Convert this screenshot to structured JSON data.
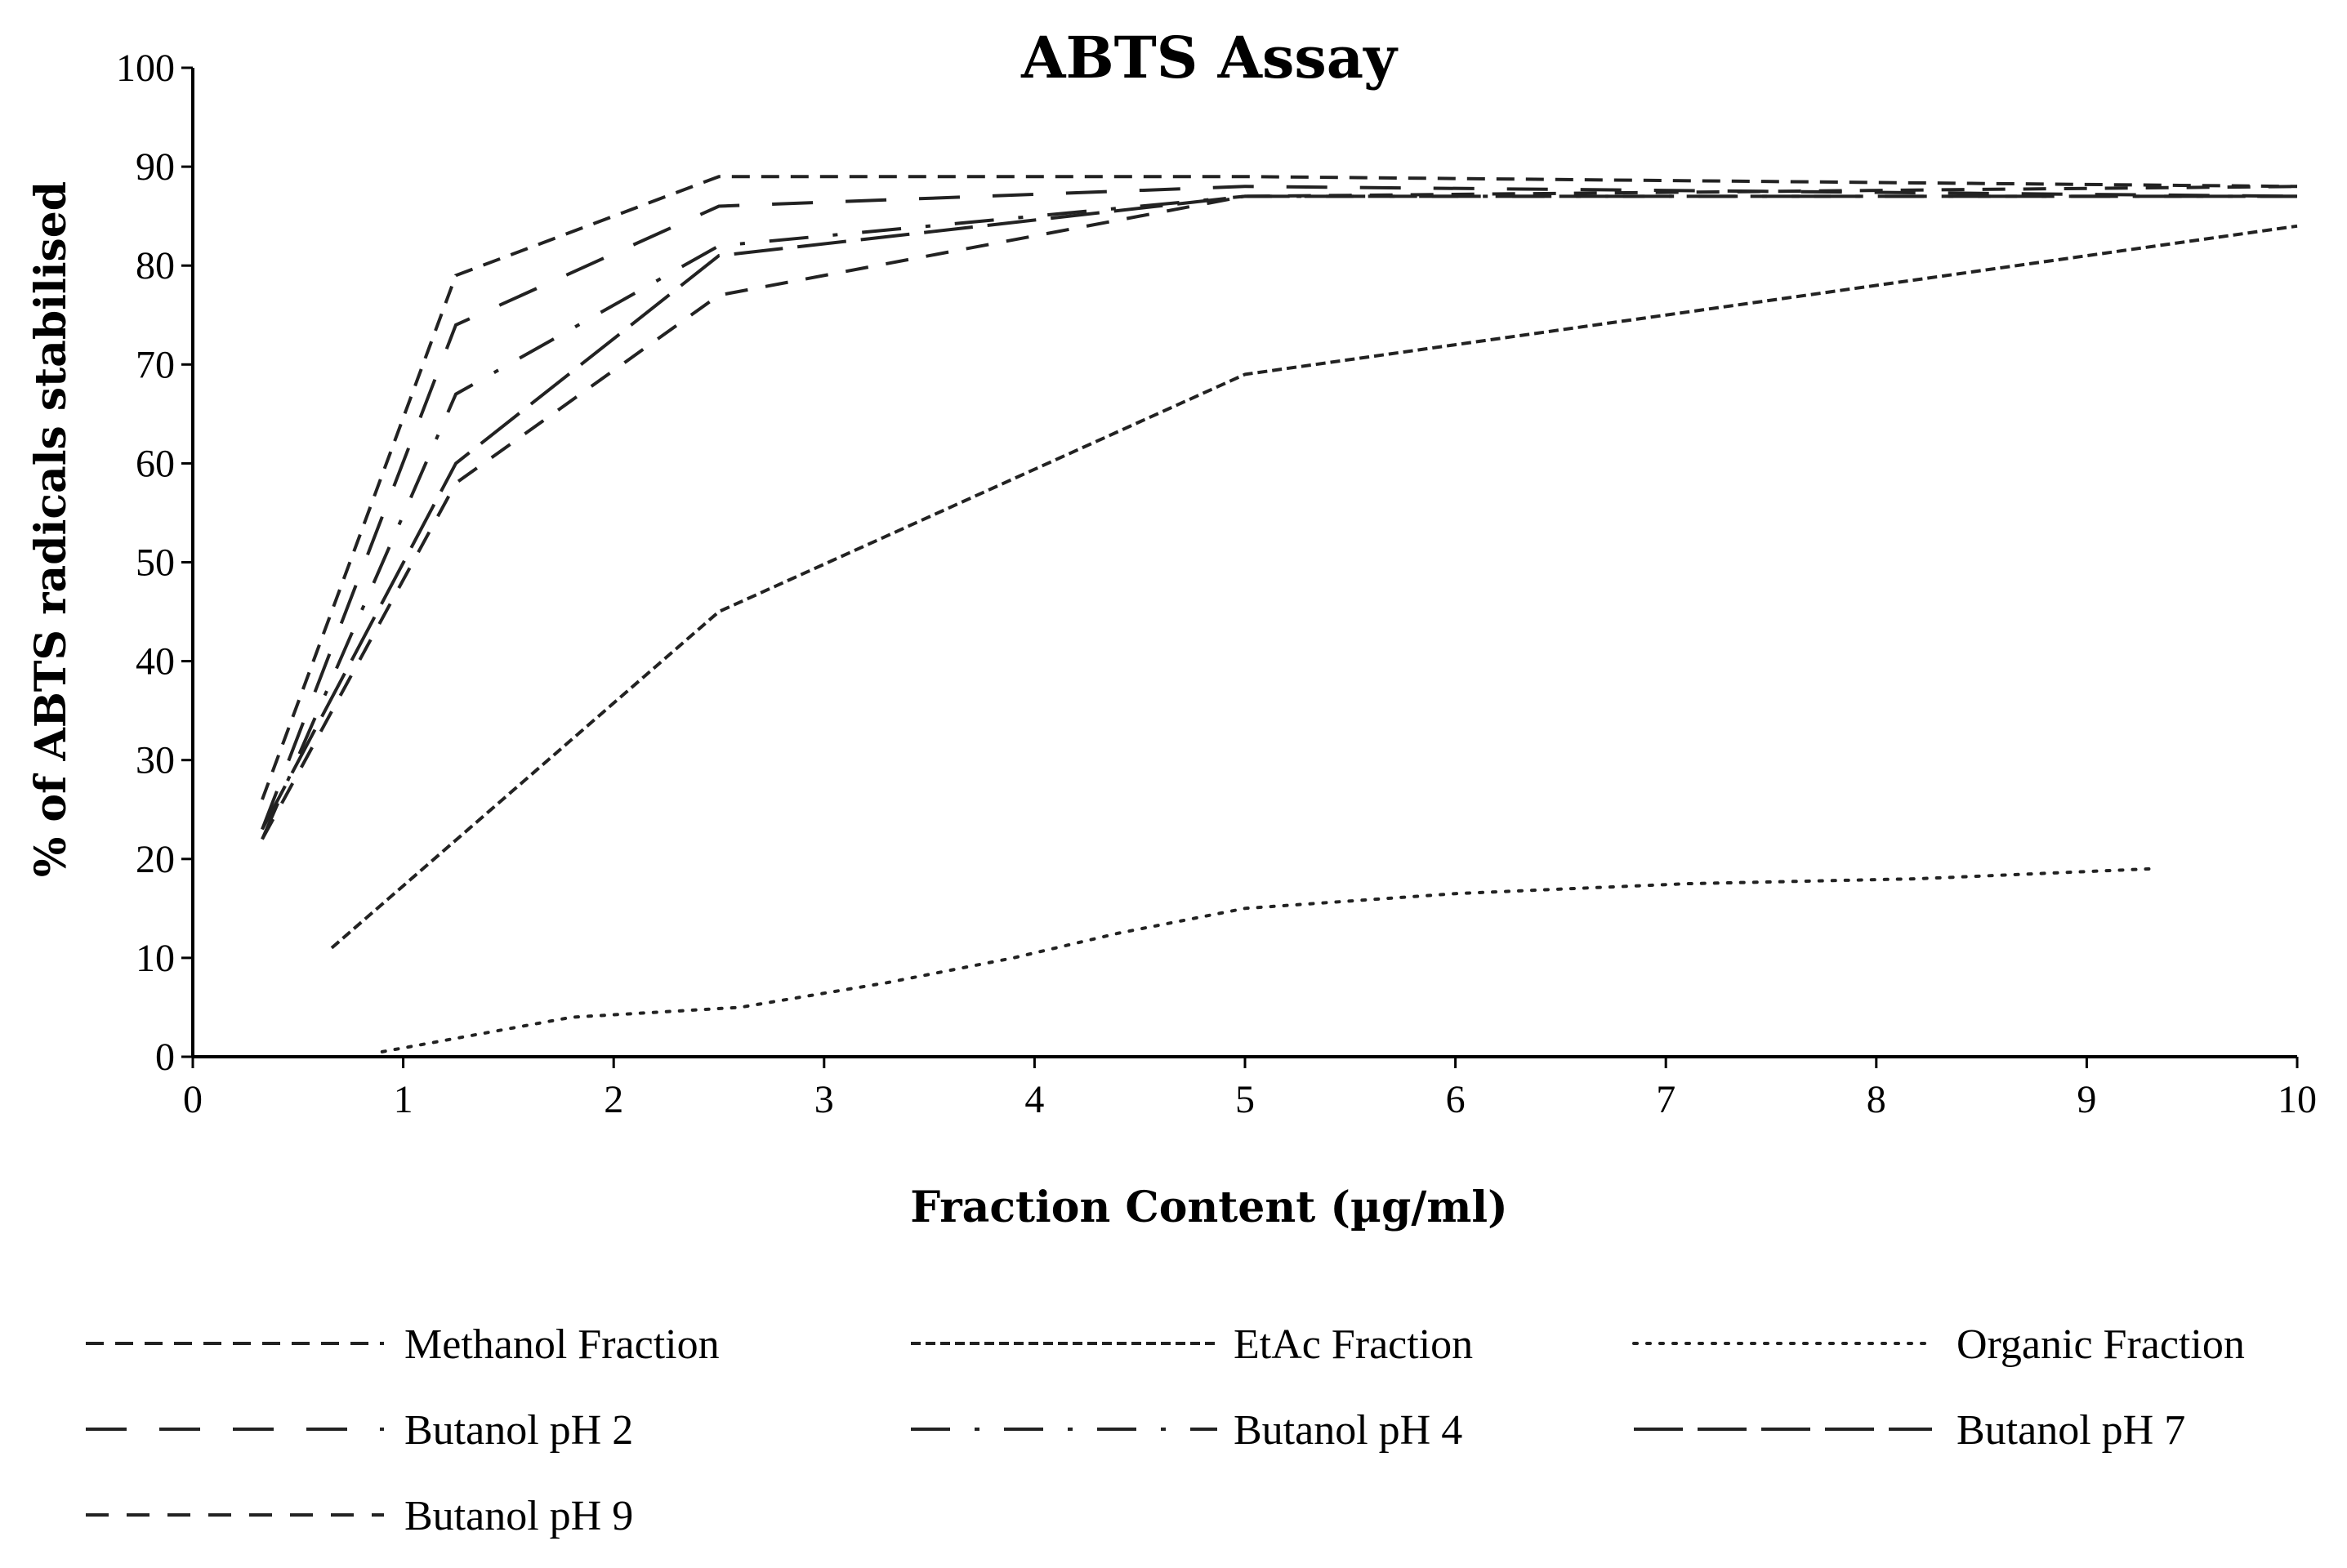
{
  "chart_data": {
    "type": "line",
    "title": "ABTS Assay",
    "xlabel": "Fraction Content (µg/ml)",
    "ylabel": "% of ABTS radicals stabilised",
    "xlim": [
      0,
      10
    ],
    "ylim": [
      0,
      100
    ],
    "x_ticks": [
      "0",
      "1",
      "2",
      "3",
      "4",
      "5",
      "6",
      "7",
      "8",
      "9",
      "10"
    ],
    "y_ticks": [
      "0",
      "10",
      "20",
      "30",
      "40",
      "50",
      "60",
      "70",
      "80",
      "90",
      "100"
    ],
    "grid": false,
    "legend_position": "bottom",
    "series": [
      {
        "name": "Methanol Fraction",
        "dash": "22,14",
        "x": [
          0.33,
          1.25,
          2.5,
          5,
          10
        ],
        "y": [
          26,
          79,
          89,
          89,
          88
        ]
      },
      {
        "name": "EtAc Fraction",
        "dash": "12,6",
        "x": [
          0.66,
          2.5,
          5,
          10
        ],
        "y": [
          11,
          45,
          69,
          84
        ]
      },
      {
        "name": "Organic Fraction",
        "dash": "4,12",
        "x": [
          0.9,
          1.8,
          2.6,
          3.3,
          3.9,
          4.4,
          5.0,
          6.0,
          7.1,
          8.2,
          9.3
        ],
        "y": [
          0.5,
          4,
          5,
          7.5,
          10,
          12.5,
          15,
          16.5,
          17.5,
          18,
          19
        ]
      },
      {
        "name": "Butanol pH 2",
        "dash": "50,40",
        "x": [
          0.33,
          1.25,
          2.5,
          5,
          10
        ],
        "y": [
          23,
          74,
          86,
          88,
          87
        ]
      },
      {
        "name": "Butanol pH 4",
        "dash": "48,30,6,30",
        "x": [
          0.33,
          1.25,
          2.5,
          5,
          10
        ],
        "y": [
          22,
          67,
          82,
          87,
          87
        ]
      },
      {
        "name": "Butanol pH 7",
        "dash": "60,18",
        "x": [
          0.33,
          1.25,
          2.5,
          5,
          10
        ],
        "y": [
          23,
          60,
          81,
          87,
          87
        ]
      },
      {
        "name": "Butanol pH 9",
        "dash": "28,22",
        "x": [
          0.33,
          1.25,
          2.5,
          5,
          10
        ],
        "y": [
          22,
          58,
          77,
          87,
          88
        ]
      }
    ]
  }
}
